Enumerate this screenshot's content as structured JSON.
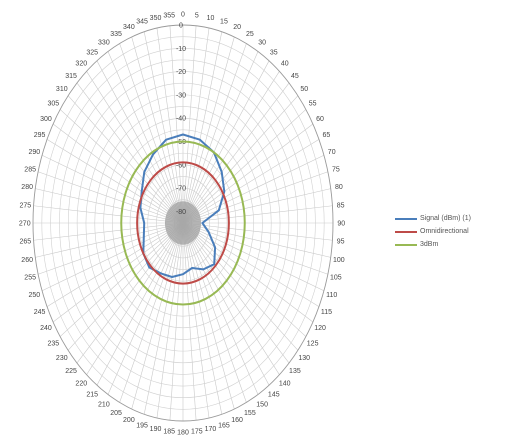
{
  "chart_data": {
    "type": "radar",
    "title": "",
    "angle_unit": "degrees",
    "angle_step": 5,
    "angle_labels": [
      "0",
      "5",
      "10",
      "15",
      "20",
      "25",
      "30",
      "35",
      "40",
      "45",
      "50",
      "55",
      "60",
      "65",
      "70",
      "75",
      "80",
      "85",
      "90",
      "95",
      "100",
      "105",
      "110",
      "115",
      "120",
      "125",
      "130",
      "135",
      "140",
      "145",
      "150",
      "155",
      "160",
      "165",
      "170",
      "175",
      "180",
      "185",
      "190",
      "195",
      "200",
      "205",
      "210",
      "215",
      "220",
      "225",
      "230",
      "235",
      "240",
      "245",
      "250",
      "255",
      "260",
      "265",
      "270",
      "275",
      "280",
      "285",
      "290",
      "295",
      "300",
      "305",
      "310",
      "315",
      "320",
      "325",
      "330",
      "335",
      "340",
      "345",
      "350",
      "355"
    ],
    "radial_ticks": [
      "0",
      "-10",
      "-20",
      "-30",
      "-40",
      "-50",
      "-60",
      "-70",
      "-80"
    ],
    "radial_range": [
      -85,
      0
    ],
    "grid": true,
    "legend_position": "right",
    "series": [
      {
        "name": "Signal (dBm) (1)",
        "color": "#4a7ebb",
        "theta": [
          0,
          15,
          30,
          45,
          60,
          75,
          90,
          105,
          120,
          135,
          150,
          165,
          180,
          195,
          210,
          225,
          240,
          255,
          270,
          285,
          300,
          315,
          330,
          345
        ],
        "values": [
          -47,
          -48,
          -50,
          -54,
          -58,
          -64,
          -74,
          -70,
          -64,
          -60,
          -62,
          -65,
          -63,
          -61,
          -60,
          -58,
          -59,
          -62,
          -63,
          -60,
          -58,
          -54,
          -51,
          -48
        ]
      },
      {
        "name": "Omnidirectional",
        "color": "#be4b48",
        "constant": -59
      },
      {
        "name": "3dBm",
        "color": "#98b954",
        "constant": -50
      }
    ]
  }
}
